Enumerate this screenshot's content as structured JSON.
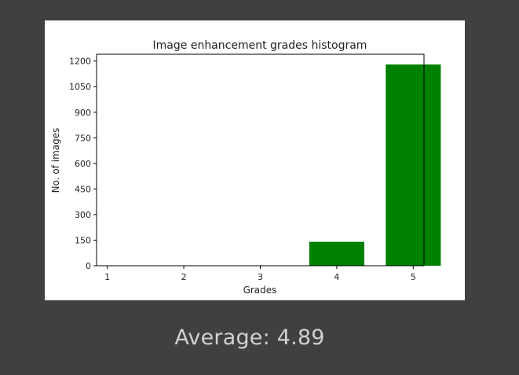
{
  "caption": {
    "label": "Average:",
    "value": "4.89"
  },
  "colors": {
    "background": "#404040",
    "bar": "#008000",
    "caption_text": "#cfd2cf"
  },
  "chart_data": {
    "type": "bar",
    "title": "Image enhancement grades histogram",
    "xlabel": "Grades",
    "ylabel": "No. of images",
    "bars": [
      {
        "grade": 1,
        "value": 0
      },
      {
        "grade": 2,
        "value": 0
      },
      {
        "grade": 3,
        "value": 0
      },
      {
        "grade": 4,
        "value": 140
      },
      {
        "grade": 5,
        "value": 1180
      }
    ],
    "xticks": [
      "1",
      "2",
      "3",
      "4",
      "5"
    ],
    "yticks": [
      "0",
      "150",
      "300",
      "450",
      "600",
      "750",
      "900",
      "1050",
      "1200"
    ],
    "xlim": [
      0.86,
      5.14
    ],
    "ylim": [
      0,
      1240
    ],
    "grid": false,
    "legend": "none"
  }
}
